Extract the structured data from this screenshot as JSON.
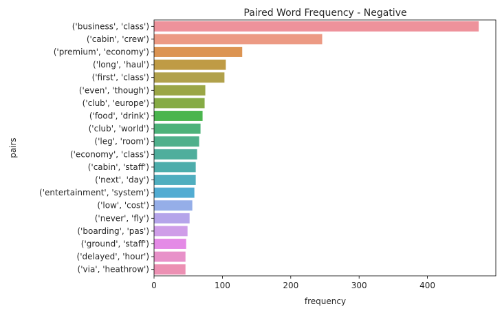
{
  "chart_data": {
    "type": "bar",
    "orientation": "horizontal",
    "title": "Paired Word Frequency - Negative",
    "xlabel": "frequency",
    "ylabel": "pairs",
    "xlim": [
      0,
      500
    ],
    "xticks": [
      0,
      100,
      200,
      300,
      400
    ],
    "grid": false,
    "categories": [
      "('business', 'class')",
      "('cabin', 'crew')",
      "('premium', 'economy')",
      "('long', 'haul')",
      "('first', 'class')",
      "('even', 'though')",
      "('club', 'europe')",
      "('food', 'drink')",
      "('club', 'world')",
      "('leg', 'room')",
      "('economy', 'class')",
      "('cabin', 'staff')",
      "('next', 'day')",
      "('entertainment', 'system')",
      "('low', 'cost')",
      "('never', 'fly')",
      "('boarding', 'pas')",
      "('ground', 'staff')",
      "('delayed', 'hour')",
      "('via', 'heathrow')"
    ],
    "values": [
      475,
      246,
      129,
      105,
      103,
      75,
      74,
      71,
      68,
      66,
      63,
      61,
      61,
      59,
      56,
      52,
      49,
      47,
      46,
      46
    ],
    "colors": [
      "#ee929b",
      "#ec9a84",
      "#dc9452",
      "#bf9b45",
      "#b1a14b",
      "#9ba646",
      "#86ab45",
      "#4ab54e",
      "#4db27a",
      "#4fb08b",
      "#4fae9c",
      "#4dadab",
      "#50aebf",
      "#52acd2",
      "#95aee8",
      "#b5a4ea",
      "#cf9de8",
      "#e48ae6",
      "#e891c9",
      "#ec90b3"
    ]
  }
}
